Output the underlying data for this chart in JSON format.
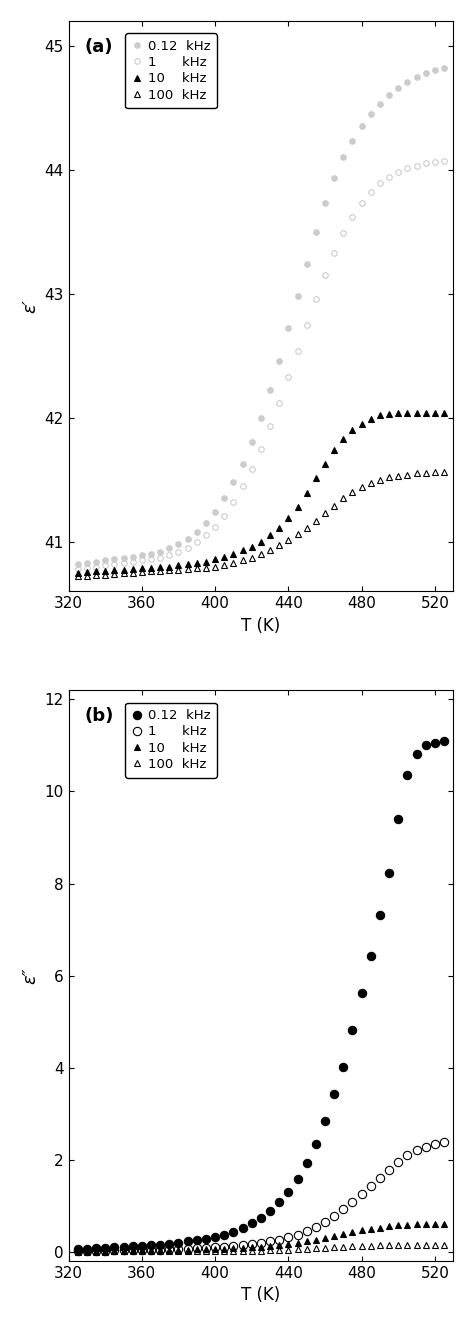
{
  "panel_a": {
    "label": "(a)",
    "ylabel": "ε′",
    "xlabel": "T (K)",
    "xlim": [
      320,
      530
    ],
    "ylim": [
      40.6,
      45.2
    ],
    "yticks": [
      41,
      42,
      43,
      44,
      45
    ],
    "xticks": [
      320,
      360,
      400,
      440,
      480,
      520
    ],
    "series": [
      {
        "label": "0.12  kHz",
        "marker": "o",
        "filled": true,
        "color": "#cccccc",
        "markersize": 4,
        "T": [
          325,
          330,
          335,
          340,
          345,
          350,
          355,
          360,
          365,
          370,
          375,
          380,
          385,
          390,
          395,
          400,
          405,
          410,
          415,
          420,
          425,
          430,
          435,
          440,
          445,
          450,
          455,
          460,
          465,
          470,
          475,
          480,
          485,
          490,
          495,
          500,
          505,
          510,
          515,
          520,
          525
        ],
        "eps": [
          40.82,
          40.83,
          40.84,
          40.85,
          40.86,
          40.87,
          40.88,
          40.89,
          40.9,
          40.92,
          40.95,
          40.98,
          41.02,
          41.08,
          41.15,
          41.24,
          41.35,
          41.48,
          41.63,
          41.8,
          42.0,
          42.22,
          42.46,
          42.72,
          42.98,
          43.24,
          43.5,
          43.73,
          43.93,
          44.1,
          44.23,
          44.35,
          44.45,
          44.53,
          44.6,
          44.66,
          44.71,
          44.75,
          44.78,
          44.8,
          44.82
        ]
      },
      {
        "label": "1      kHz",
        "marker": "o",
        "filled": false,
        "color": "#cccccc",
        "markersize": 4,
        "T": [
          325,
          330,
          335,
          340,
          345,
          350,
          355,
          360,
          365,
          370,
          375,
          380,
          385,
          390,
          395,
          400,
          405,
          410,
          415,
          420,
          425,
          430,
          435,
          440,
          445,
          450,
          455,
          460,
          465,
          470,
          475,
          480,
          485,
          490,
          495,
          500,
          505,
          510,
          515,
          520,
          525
        ],
        "eps": [
          40.78,
          40.79,
          40.8,
          40.81,
          40.82,
          40.83,
          40.84,
          40.85,
          40.86,
          40.87,
          40.89,
          40.92,
          40.95,
          41.0,
          41.05,
          41.12,
          41.21,
          41.32,
          41.45,
          41.59,
          41.75,
          41.93,
          42.12,
          42.33,
          42.54,
          42.75,
          42.96,
          43.15,
          43.33,
          43.49,
          43.62,
          43.73,
          43.82,
          43.89,
          43.94,
          43.98,
          44.01,
          44.03,
          44.05,
          44.06,
          44.07
        ]
      },
      {
        "label": "10    kHz",
        "marker": "^",
        "filled": true,
        "color": "#000000",
        "markersize": 5,
        "T": [
          325,
          330,
          335,
          340,
          345,
          350,
          355,
          360,
          365,
          370,
          375,
          380,
          385,
          390,
          395,
          400,
          405,
          410,
          415,
          420,
          425,
          430,
          435,
          440,
          445,
          450,
          455,
          460,
          465,
          470,
          475,
          480,
          485,
          490,
          495,
          500,
          505,
          510,
          515,
          520,
          525
        ],
        "eps": [
          40.75,
          40.755,
          40.76,
          40.765,
          40.77,
          40.775,
          40.78,
          40.785,
          40.79,
          40.795,
          40.8,
          40.81,
          40.82,
          40.83,
          40.84,
          40.86,
          40.88,
          40.9,
          40.93,
          40.96,
          41.0,
          41.05,
          41.11,
          41.19,
          41.28,
          41.39,
          41.51,
          41.63,
          41.74,
          41.83,
          41.9,
          41.95,
          41.99,
          42.02,
          42.03,
          42.04,
          42.04,
          42.04,
          42.04,
          42.04,
          42.04
        ]
      },
      {
        "label": "100  kHz",
        "marker": "^",
        "filled": false,
        "color": "#000000",
        "markersize": 5,
        "T": [
          325,
          330,
          335,
          340,
          345,
          350,
          355,
          360,
          365,
          370,
          375,
          380,
          385,
          390,
          395,
          400,
          405,
          410,
          415,
          420,
          425,
          430,
          435,
          440,
          445,
          450,
          455,
          460,
          465,
          470,
          475,
          480,
          485,
          490,
          495,
          500,
          505,
          510,
          515,
          520,
          525
        ],
        "eps": [
          40.72,
          40.725,
          40.73,
          40.735,
          40.74,
          40.745,
          40.75,
          40.755,
          40.76,
          40.765,
          40.77,
          40.775,
          40.78,
          40.785,
          40.79,
          40.8,
          40.81,
          40.83,
          40.85,
          40.87,
          40.9,
          40.93,
          40.97,
          41.01,
          41.06,
          41.11,
          41.17,
          41.23,
          41.29,
          41.35,
          41.4,
          41.44,
          41.47,
          41.5,
          41.52,
          41.53,
          41.54,
          41.55,
          41.55,
          41.56,
          41.56
        ]
      }
    ]
  },
  "panel_b": {
    "label": "(b)",
    "ylabel": "ε″",
    "xlabel": "T (K)",
    "xlim": [
      320,
      530
    ],
    "ylim": [
      -0.2,
      12.2
    ],
    "yticks": [
      0,
      2,
      4,
      6,
      8,
      10,
      12
    ],
    "xticks": [
      320,
      360,
      400,
      440,
      480,
      520
    ],
    "series": [
      {
        "label": "0.12  kHz",
        "marker": "o",
        "filled": true,
        "color": "#000000",
        "markersize": 6,
        "T": [
          325,
          330,
          335,
          340,
          345,
          350,
          355,
          360,
          365,
          370,
          375,
          380,
          385,
          390,
          395,
          400,
          405,
          410,
          415,
          420,
          425,
          430,
          435,
          440,
          445,
          450,
          455,
          460,
          465,
          470,
          475,
          480,
          485,
          490,
          495,
          500,
          505,
          510,
          515,
          520,
          525
        ],
        "eps": [
          0.05,
          0.06,
          0.07,
          0.08,
          0.09,
          0.1,
          0.11,
          0.13,
          0.14,
          0.15,
          0.17,
          0.19,
          0.22,
          0.25,
          0.28,
          0.32,
          0.37,
          0.43,
          0.51,
          0.61,
          0.73,
          0.88,
          1.07,
          1.3,
          1.58,
          1.92,
          2.34,
          2.84,
          3.42,
          4.02,
          4.82,
          5.62,
          6.42,
          7.32,
          8.22,
          9.4,
          10.35,
          10.82,
          11.0,
          11.06,
          11.1
        ]
      },
      {
        "label": "1      kHz",
        "marker": "o",
        "filled": false,
        "color": "#000000",
        "markersize": 6,
        "T": [
          325,
          330,
          335,
          340,
          345,
          350,
          355,
          360,
          365,
          370,
          375,
          380,
          385,
          390,
          395,
          400,
          405,
          410,
          415,
          420,
          425,
          430,
          435,
          440,
          445,
          450,
          455,
          460,
          465,
          470,
          475,
          480,
          485,
          490,
          495,
          500,
          505,
          510,
          515,
          520,
          525
        ],
        "eps": [
          0.02,
          0.02,
          0.02,
          0.02,
          0.03,
          0.03,
          0.03,
          0.04,
          0.04,
          0.04,
          0.05,
          0.05,
          0.06,
          0.07,
          0.08,
          0.09,
          0.1,
          0.12,
          0.14,
          0.16,
          0.19,
          0.22,
          0.26,
          0.31,
          0.37,
          0.45,
          0.54,
          0.65,
          0.78,
          0.92,
          1.08,
          1.25,
          1.43,
          1.6,
          1.78,
          1.95,
          2.1,
          2.2,
          2.28,
          2.33,
          2.38
        ]
      },
      {
        "label": "10    kHz",
        "marker": "^",
        "filled": true,
        "color": "#000000",
        "markersize": 5,
        "T": [
          325,
          330,
          335,
          340,
          345,
          350,
          355,
          360,
          365,
          370,
          375,
          380,
          385,
          390,
          395,
          400,
          405,
          410,
          415,
          420,
          425,
          430,
          435,
          440,
          445,
          450,
          455,
          460,
          465,
          470,
          475,
          480,
          485,
          490,
          495,
          500,
          505,
          510,
          515,
          520,
          525
        ],
        "eps": [
          0.02,
          0.02,
          0.02,
          0.02,
          0.02,
          0.02,
          0.03,
          0.03,
          0.03,
          0.03,
          0.04,
          0.04,
          0.04,
          0.05,
          0.05,
          0.06,
          0.06,
          0.07,
          0.08,
          0.09,
          0.1,
          0.12,
          0.14,
          0.16,
          0.19,
          0.22,
          0.26,
          0.3,
          0.34,
          0.38,
          0.42,
          0.46,
          0.49,
          0.52,
          0.55,
          0.57,
          0.58,
          0.59,
          0.59,
          0.6,
          0.6
        ]
      },
      {
        "label": "100  kHz",
        "marker": "^",
        "filled": false,
        "color": "#000000",
        "markersize": 5,
        "T": [
          325,
          330,
          335,
          340,
          345,
          350,
          355,
          360,
          365,
          370,
          375,
          380,
          385,
          390,
          395,
          400,
          405,
          410,
          415,
          420,
          425,
          430,
          435,
          440,
          445,
          450,
          455,
          460,
          465,
          470,
          475,
          480,
          485,
          490,
          495,
          500,
          505,
          510,
          515,
          520,
          525
        ],
        "eps": [
          0.0,
          0.0,
          0.0,
          0.0,
          0.01,
          0.01,
          0.01,
          0.01,
          0.01,
          0.01,
          0.01,
          0.01,
          0.01,
          0.01,
          0.02,
          0.02,
          0.02,
          0.02,
          0.02,
          0.02,
          0.02,
          0.03,
          0.03,
          0.04,
          0.05,
          0.06,
          0.07,
          0.08,
          0.09,
          0.1,
          0.11,
          0.12,
          0.13,
          0.14,
          0.14,
          0.15,
          0.15,
          0.15,
          0.15,
          0.15,
          0.15
        ]
      }
    ]
  }
}
